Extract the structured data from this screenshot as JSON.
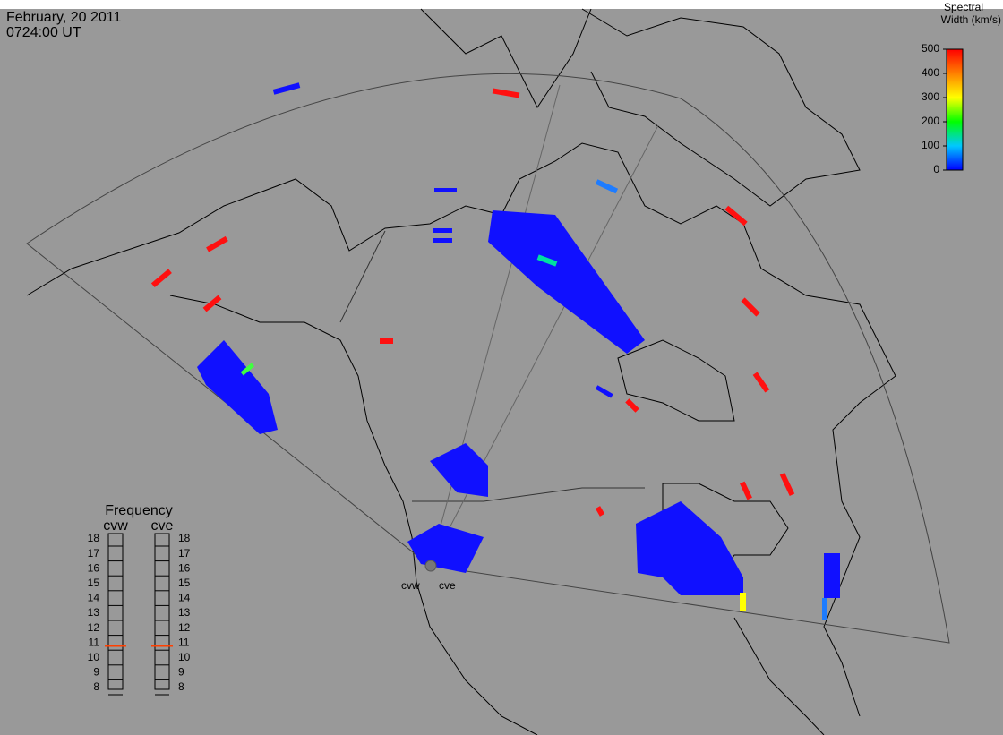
{
  "header": {
    "date": "February, 20 2011",
    "time": "0724:00 UT"
  },
  "colorbar": {
    "title_line1": "Spectral",
    "title_line2": "Width (km/s)",
    "lim": [
      0,
      500
    ],
    "ticks": [
      0,
      100,
      200,
      300,
      400,
      500
    ],
    "colors": [
      "#0000ff",
      "#00c8ff",
      "#00ff00",
      "#ffff00",
      "#ff8000",
      "#ff0000"
    ]
  },
  "frequency": {
    "title": "Frequency",
    "lim": [
      8,
      18
    ],
    "ticks": [
      8,
      9,
      10,
      11,
      12,
      13,
      14,
      15,
      16,
      17,
      18
    ],
    "marker_color": "#ff4000",
    "radars": [
      {
        "name": "cvw",
        "value": 10.8
      },
      {
        "name": "cve",
        "value": 10.8
      }
    ]
  }
}
